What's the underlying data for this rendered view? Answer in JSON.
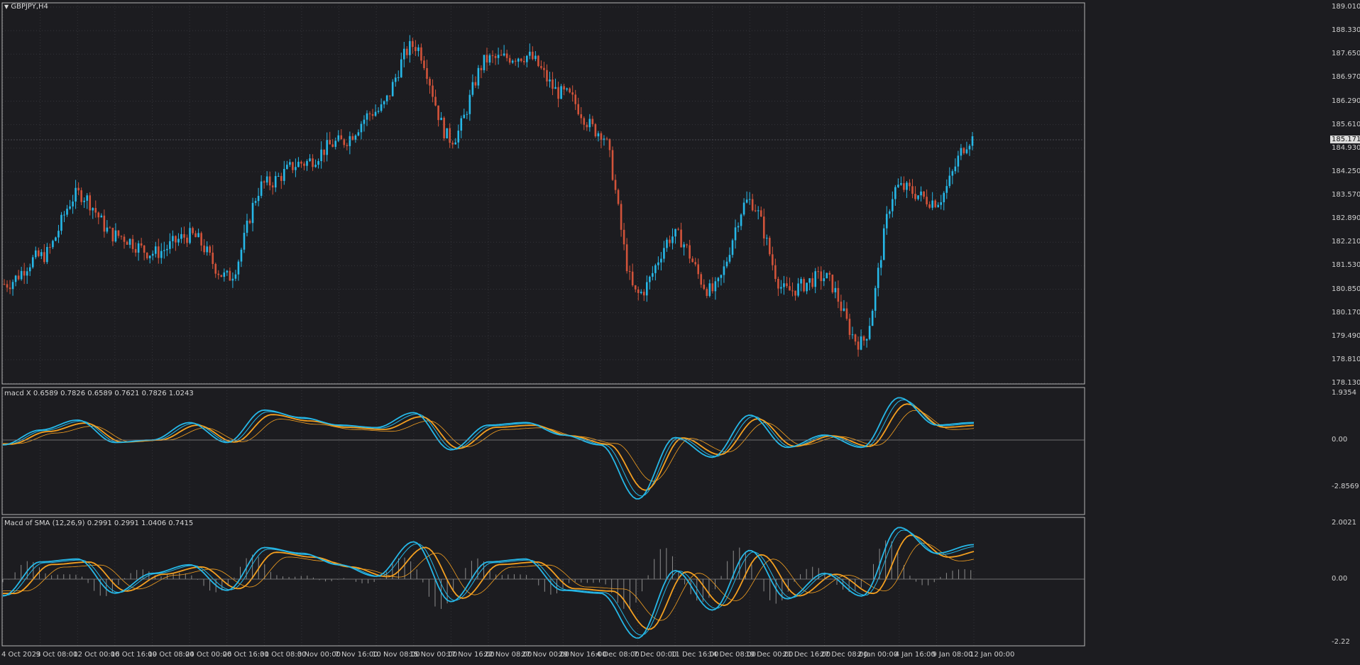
{
  "window": {
    "title": "GBPJPY,H4",
    "current_price": "185.171"
  },
  "main_pane": {
    "y_axis": [
      "189.010",
      "188.330",
      "187.650",
      "186.970",
      "186.290",
      "185.610",
      "184.930",
      "184.250",
      "183.570",
      "182.890",
      "182.210",
      "181.530",
      "180.850",
      "180.170",
      "179.490",
      "178.810",
      "178.130"
    ]
  },
  "indicator1": {
    "label": "macd X 0.6589 0.7826 0.6589 0.7621 0.7826 1.0243",
    "y_axis": [
      "1.9354",
      "0.00",
      "-2.8569"
    ]
  },
  "indicator2": {
    "label": "Macd of SMA (12,26,9) 0.2991 0.2991 1.0406 0.7415",
    "y_axis": [
      "2.0021",
      "0.00",
      "-2.22"
    ]
  },
  "x_axis": [
    "4 Oct 2023",
    "9 Oct 08:00",
    "12 Oct 00:00",
    "16 Oct 16:00",
    "19 Oct 08:00",
    "24 Oct 00:00",
    "26 Oct 16:00",
    "31 Oct 08:00",
    "3 Nov 00:00",
    "7 Nov 16:00",
    "10 Nov 08:00",
    "15 Nov 00:00",
    "17 Nov 16:00",
    "22 Nov 08:00",
    "27 Nov 00:00",
    "29 Nov 16:00",
    "4 Dec 08:00",
    "7 Dec 00:00",
    "11 Dec 16:00",
    "14 Dec 08:00",
    "19 Dec 00:00",
    "21 Dec 16:00",
    "27 Dec 08:00",
    "2 Jan 00:00",
    "4 Jan 16:00",
    "9 Jan 08:00",
    "12 Jan 00:00"
  ],
  "colors": {
    "background": "#1c1c20",
    "bull": "#26b8e8",
    "bear": "#d2533a",
    "orange": "#f5a020",
    "grid": "#34343a"
  },
  "chart_data": [
    {
      "type": "candlestick",
      "title": "GBPJPY,H4",
      "ylim": [
        178.13,
        189.01
      ],
      "close_path": [
        {
          "x": "4 Oct 2023",
          "y": 181.0
        },
        {
          "x": "9 Oct 08:00",
          "y": 181.8
        },
        {
          "x": "12 Oct 00:00",
          "y": 183.6
        },
        {
          "x": "16 Oct 16:00",
          "y": 182.4
        },
        {
          "x": "19 Oct 08:00",
          "y": 181.9
        },
        {
          "x": "24 Oct 00:00",
          "y": 182.4
        },
        {
          "x": "26 Oct 16:00",
          "y": 181.2
        },
        {
          "x": "31 Oct 08:00",
          "y": 183.9
        },
        {
          "x": "3 Nov 00:00",
          "y": 184.5
        },
        {
          "x": "7 Nov 16:00",
          "y": 185.1
        },
        {
          "x": "10 Nov 08:00",
          "y": 186.0
        },
        {
          "x": "15 Nov 00:00",
          "y": 187.9
        },
        {
          "x": "17 Nov 16:00",
          "y": 185.2
        },
        {
          "x": "22 Nov 08:00",
          "y": 187.5
        },
        {
          "x": "27 Nov 00:00",
          "y": 187.6
        },
        {
          "x": "29 Nov 16:00",
          "y": 186.5
        },
        {
          "x": "4 Dec 08:00",
          "y": 185.4
        },
        {
          "x": "7 Dec 00:00",
          "y": 180.7
        },
        {
          "x": "11 Dec 16:00",
          "y": 182.4
        },
        {
          "x": "14 Dec 08:00",
          "y": 180.8
        },
        {
          "x": "19 Dec 00:00",
          "y": 183.4
        },
        {
          "x": "21 Dec 16:00",
          "y": 180.8
        },
        {
          "x": "27 Dec 08:00",
          "y": 181.2
        },
        {
          "x": "2 Jan 00:00",
          "y": 179.3
        },
        {
          "x": "4 Jan 16:00",
          "y": 183.8
        },
        {
          "x": "9 Jan 08:00",
          "y": 183.4
        },
        {
          "x": "12 Jan 00:00",
          "y": 185.2
        }
      ]
    },
    {
      "type": "line",
      "title": "macd X",
      "ylim": [
        -2.8569,
        1.9354
      ],
      "series_values": [
        -0.2,
        0.4,
        0.8,
        -0.1,
        0.0,
        0.7,
        -0.1,
        1.2,
        0.9,
        0.6,
        0.5,
        1.1,
        -0.4,
        0.6,
        0.7,
        0.2,
        -0.2,
        -2.4,
        0.1,
        -0.7,
        1.0,
        -0.3,
        0.2,
        -0.3,
        1.7,
        0.6,
        0.7
      ]
    },
    {
      "type": "line",
      "title": "Macd of SMA (12,26,9)",
      "ylim": [
        -2.22,
        2.0021
      ],
      "series_values": [
        -0.6,
        0.6,
        0.7,
        -0.5,
        0.2,
        0.5,
        -0.4,
        1.1,
        0.9,
        0.5,
        0.1,
        1.3,
        -0.8,
        0.6,
        0.7,
        -0.4,
        -0.5,
        -2.1,
        0.3,
        -1.1,
        1.0,
        -0.7,
        0.2,
        -0.6,
        1.8,
        0.9,
        1.2
      ]
    }
  ]
}
